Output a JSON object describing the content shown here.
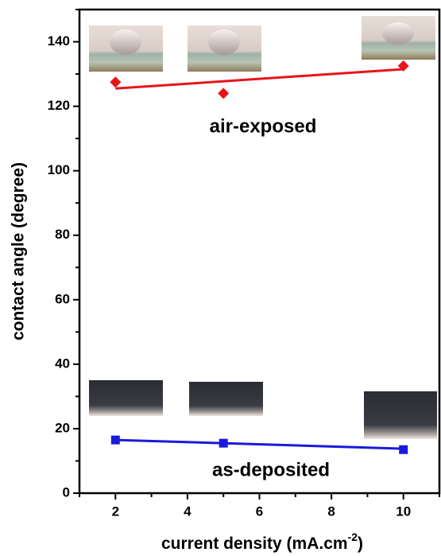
{
  "chart_data": {
    "type": "scatter",
    "xlabel": "current density (mA.cm",
    "xlabel_sup": "-2",
    "xlabel_end": ")",
    "ylabel": "contact angle (degree)",
    "annotations": [
      "air-exposed",
      "as-deposited"
    ],
    "xlim": [
      1,
      11
    ],
    "ylim": [
      0,
      150
    ],
    "xticks": [
      2,
      4,
      6,
      8,
      10
    ],
    "yticks": [
      0,
      20,
      40,
      60,
      80,
      100,
      120,
      140
    ],
    "xminorticks": [
      1,
      3,
      5,
      7,
      9,
      11
    ],
    "yminorticks": [
      10,
      30,
      50,
      70,
      90,
      110,
      130,
      150
    ],
    "series": [
      {
        "name": "air-exposed",
        "color": "#e8141b",
        "marker": "diamond",
        "x": [
          2,
          5,
          10
        ],
        "values": [
          127.5,
          124,
          132.5
        ]
      },
      {
        "name": "as-deposited",
        "color": "#1a1adb",
        "marker": "square",
        "x": [
          2,
          5,
          10
        ],
        "values": [
          16.5,
          15.5,
          13.5
        ]
      }
    ],
    "fits": [
      {
        "color": "#e8141b",
        "x": [
          2,
          10
        ],
        "values": [
          125.5,
          131.5
        ]
      },
      {
        "color": "#1a1adb",
        "x": [
          2,
          10
        ],
        "values": [
          16.5,
          13.8
        ]
      }
    ]
  }
}
